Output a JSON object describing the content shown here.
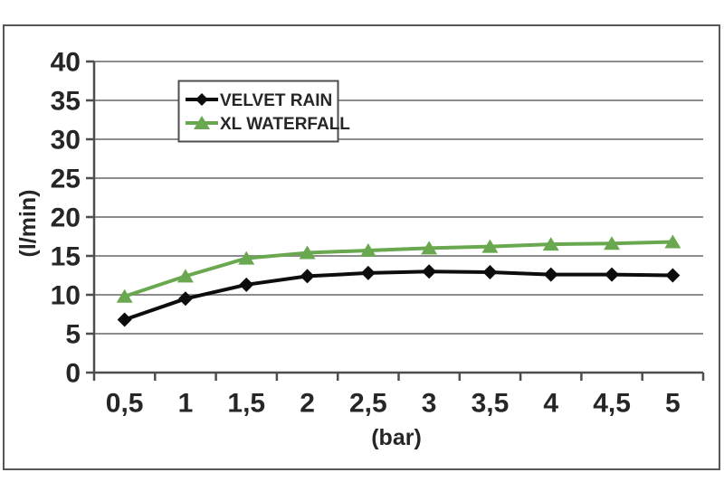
{
  "chart_data": {
    "type": "line",
    "title": "",
    "xlabel": "(bar)",
    "ylabel": "(l/min)",
    "x": [
      0.5,
      1,
      1.5,
      2,
      2.5,
      3,
      3.5,
      4,
      4.5,
      5
    ],
    "x_tick_labels": [
      "0,5",
      "1",
      "1,5",
      "2",
      "2,5",
      "3",
      "3,5",
      "4",
      "4,5",
      "5"
    ],
    "y_ticks": [
      0,
      5,
      10,
      15,
      20,
      25,
      30,
      35,
      40
    ],
    "ylim": [
      0,
      40
    ],
    "grid": true,
    "legend_position": "top-center-inside",
    "series": [
      {
        "name": "VELVET RAIN",
        "marker": "diamond",
        "color": "#0d0d0d",
        "values": [
          6.8,
          9.5,
          11.3,
          12.4,
          12.8,
          13,
          12.9,
          12.6,
          12.6,
          12.5
        ]
      },
      {
        "name": "XL WATERFALL",
        "marker": "triangle",
        "color": "#6aa84f",
        "values": [
          9.8,
          12.4,
          14.7,
          15.4,
          15.7,
          16,
          16.2,
          16.5,
          16.6,
          16.8
        ]
      }
    ]
  },
  "colors": {
    "background": "#ffffff",
    "frame_border": "#575757",
    "legend_border": "#4d4d4d",
    "gridline": "#8c8c8c",
    "axis": "#4d4d4d",
    "text": "#262626"
  }
}
